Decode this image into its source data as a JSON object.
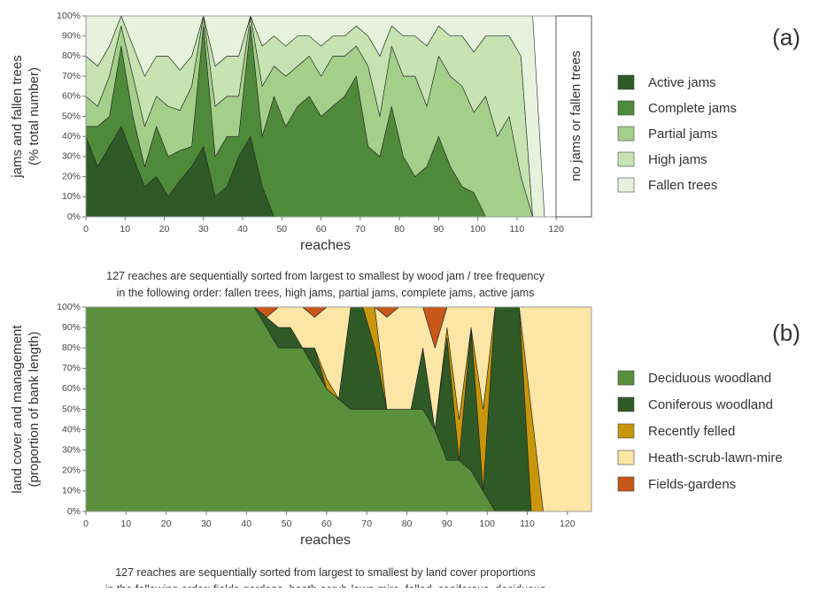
{
  "chart_data": [
    {
      "type": "stacked_area",
      "panel_label": "(a)",
      "y_label": [
        "jams and fallen trees",
        "(% total number)"
      ],
      "x_label": "reaches",
      "caption": [
        "127 reaches are sequentially sorted from largest to smallest by wood jam / tree frequency",
        "in the following order: fallen trees, high jams, partial jams, complete jams, active jams"
      ],
      "annotation": "no jams or fallen trees",
      "x": [
        0,
        3,
        6,
        9,
        12,
        15,
        18,
        21,
        24,
        27,
        30,
        33,
        36,
        39,
        42,
        45,
        48,
        51,
        54,
        57,
        60,
        63,
        66,
        69,
        72,
        75,
        78,
        81,
        84,
        87,
        90,
        93,
        96,
        99,
        102,
        105,
        108,
        111,
        114,
        117,
        120,
        123,
        126
      ],
      "xlim": [
        0,
        129
      ],
      "xticks": [
        0,
        10,
        20,
        30,
        40,
        50,
        60,
        70,
        80,
        90,
        100,
        110,
        120
      ],
      "ylim": [
        0,
        100
      ],
      "yticks": [
        {
          "value": 0,
          "label": "0%"
        },
        {
          "value": 10,
          "label": "10%"
        },
        {
          "value": 20,
          "label": "20%"
        },
        {
          "value": 30,
          "label": "30%"
        },
        {
          "value": 40,
          "label": "40%"
        },
        {
          "value": 50,
          "label": "50%"
        },
        {
          "value": 60,
          "label": "60%"
        },
        {
          "value": 70,
          "label": "70%"
        },
        {
          "value": 80,
          "label": "80%"
        },
        {
          "value": 90,
          "label": "90%"
        },
        {
          "value": 100,
          "label": "100%"
        }
      ],
      "series": [
        {
          "name": "Active jams",
          "color": "#2e5a26",
          "values": [
            40,
            25,
            35,
            45,
            30,
            15,
            20,
            10,
            18,
            25,
            35,
            10,
            15,
            30,
            40,
            15,
            0,
            0,
            0,
            0,
            0,
            0,
            0,
            0,
            0,
            0,
            0,
            0,
            0,
            0,
            0,
            0,
            0,
            0,
            0,
            0,
            0,
            0,
            0,
            0,
            0,
            0,
            0
          ]
        },
        {
          "name": "Complete jams",
          "color": "#4f8a3a",
          "values": [
            5,
            20,
            15,
            40,
            20,
            10,
            25,
            20,
            15,
            10,
            60,
            20,
            25,
            10,
            55,
            25,
            60,
            45,
            55,
            60,
            50,
            55,
            60,
            70,
            35,
            30,
            55,
            30,
            20,
            25,
            40,
            25,
            15,
            12,
            0,
            0,
            0,
            0,
            0,
            0,
            0,
            0,
            0
          ]
        },
        {
          "name": "Partial jams",
          "color": "#a4cf8b",
          "values": [
            15,
            10,
            20,
            10,
            20,
            20,
            15,
            25,
            20,
            30,
            5,
            25,
            20,
            20,
            5,
            25,
            15,
            25,
            20,
            20,
            20,
            25,
            20,
            15,
            40,
            20,
            30,
            40,
            50,
            30,
            40,
            45,
            50,
            40,
            60,
            40,
            50,
            20,
            0,
            0,
            0,
            0,
            0
          ]
        },
        {
          "name": "High jams",
          "color": "#c6e3b1",
          "values": [
            20,
            20,
            15,
            5,
            15,
            25,
            20,
            25,
            20,
            15,
            0,
            20,
            20,
            20,
            0,
            20,
            15,
            15,
            15,
            10,
            15,
            10,
            10,
            10,
            15,
            30,
            10,
            20,
            20,
            30,
            15,
            20,
            25,
            30,
            30,
            50,
            40,
            60,
            0,
            0,
            0,
            0,
            0
          ]
        },
        {
          "name": "Fallen trees",
          "color": "#e7f2dd",
          "values": [
            20,
            25,
            15,
            0,
            15,
            30,
            20,
            20,
            27,
            20,
            0,
            25,
            20,
            20,
            0,
            15,
            10,
            15,
            10,
            10,
            15,
            10,
            10,
            5,
            10,
            20,
            5,
            10,
            10,
            15,
            5,
            10,
            10,
            18,
            10,
            10,
            10,
            20,
            100,
            0,
            0,
            0,
            0
          ]
        }
      ]
    },
    {
      "type": "stacked_area",
      "panel_label": "(b)",
      "y_label": [
        "land cover and management",
        "(proportion of bank length)"
      ],
      "x_label": "reaches",
      "caption": [
        "127 reaches are sequentially sorted from largest to smallest by land cover proportions",
        "in the following order: fields-gardens, heath-scrub-lawn-mire, felled, coniferous, deciduous"
      ],
      "x": [
        0,
        3,
        6,
        9,
        12,
        15,
        18,
        21,
        24,
        27,
        30,
        33,
        36,
        39,
        42,
        45,
        48,
        51,
        54,
        57,
        60,
        63,
        66,
        69,
        72,
        75,
        78,
        81,
        84,
        87,
        90,
        93,
        96,
        99,
        102,
        105,
        108,
        111,
        114,
        117,
        120,
        123,
        126
      ],
      "xlim": [
        0,
        126
      ],
      "xticks": [
        0,
        10,
        20,
        30,
        40,
        50,
        60,
        70,
        80,
        90,
        100,
        110,
        120
      ],
      "ylim": [
        0,
        100
      ],
      "yticks": [
        {
          "value": 0,
          "label": "0%"
        },
        {
          "value": 10,
          "label": "10%"
        },
        {
          "value": 20,
          "label": "20%"
        },
        {
          "value": 30,
          "label": "30%"
        },
        {
          "value": 40,
          "label": "40%"
        },
        {
          "value": 50,
          "label": "50%"
        },
        {
          "value": 60,
          "label": "60%"
        },
        {
          "value": 70,
          "label": "70%"
        },
        {
          "value": 80,
          "label": "80%"
        },
        {
          "value": 90,
          "label": "90%"
        },
        {
          "value": 100,
          "label": "100%"
        }
      ],
      "series": [
        {
          "name": "Deciduous woodland",
          "color": "#5a8f3c",
          "values": [
            100,
            100,
            100,
            100,
            100,
            100,
            100,
            100,
            100,
            100,
            100,
            100,
            100,
            100,
            100,
            90,
            80,
            80,
            80,
            70,
            60,
            55,
            50,
            50,
            50,
            50,
            50,
            50,
            50,
            40,
            25,
            25,
            20,
            10,
            0,
            0,
            0,
            0,
            0,
            0,
            0,
            0,
            0
          ]
        },
        {
          "name": "Coniferous woodland",
          "color": "#2f5a25",
          "values": [
            0,
            0,
            0,
            0,
            0,
            0,
            0,
            0,
            0,
            0,
            0,
            0,
            0,
            0,
            0,
            5,
            10,
            10,
            0,
            10,
            0,
            0,
            50,
            50,
            30,
            0,
            0,
            0,
            30,
            0,
            60,
            0,
            70,
            0,
            100,
            100,
            100,
            0,
            0,
            0,
            0,
            0,
            0
          ]
        },
        {
          "name": "Recently felled",
          "color": "#c8960a",
          "values": [
            0,
            0,
            0,
            0,
            0,
            0,
            0,
            0,
            0,
            0,
            0,
            0,
            0,
            0,
            0,
            0,
            0,
            0,
            0,
            0,
            5,
            0,
            0,
            0,
            20,
            0,
            0,
            0,
            0,
            0,
            5,
            20,
            0,
            40,
            0,
            0,
            0,
            50,
            0,
            0,
            0,
            0,
            0
          ]
        },
        {
          "name": "Heath-scrub-lawn-mire",
          "color": "#fde6a6",
          "values": [
            0,
            0,
            0,
            0,
            0,
            0,
            0,
            0,
            0,
            0,
            0,
            0,
            0,
            0,
            0,
            0,
            10,
            10,
            20,
            15,
            35,
            45,
            0,
            0,
            0,
            45,
            50,
            50,
            20,
            40,
            10,
            55,
            10,
            50,
            0,
            0,
            0,
            50,
            100,
            100,
            100,
            100,
            100
          ]
        },
        {
          "name": "Fields-gardens",
          "color": "#c8581a",
          "values": [
            0,
            0,
            0,
            0,
            0,
            0,
            0,
            0,
            0,
            0,
            0,
            0,
            0,
            0,
            0,
            5,
            0,
            0,
            0,
            5,
            0,
            0,
            0,
            0,
            0,
            5,
            0,
            0,
            0,
            20,
            0,
            0,
            0,
            0,
            0,
            0,
            0,
            0,
            0,
            0,
            0,
            0,
            0
          ]
        }
      ]
    }
  ]
}
